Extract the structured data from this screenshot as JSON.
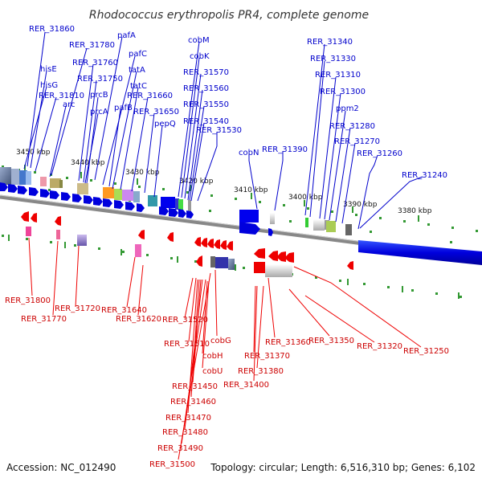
{
  "title": "Rhodococcus erythropolis PR4, complete genome",
  "footer": {
    "accession": "Accession: NC_012490",
    "summary": "Topology: circular; Length: 6,516,310 bp; Genes: 6,102"
  },
  "colors": {
    "forward": "#0000cc",
    "reverse": "#ee0000",
    "backbone": "#888888",
    "tick": "#339933"
  },
  "kbp_ticks": [
    "3450 kbp",
    "3440 kbp",
    "3430 kbp",
    "3420 kbp",
    "3410 kbp",
    "3400 kbp",
    "3390 kbp",
    "3380 kbp"
  ],
  "top_labels": [
    "RER_31860",
    "RER_31780",
    "pafA",
    "cobM",
    "RER_31340",
    "pafC",
    "cobK",
    "RER_31330",
    "hisE",
    "RER_31760",
    "tatA",
    "RER_31570",
    "RER_31310",
    "hisG",
    "RER_31750",
    "tatC",
    "RER_31560",
    "RER_31810",
    "prcB",
    "RER_31660",
    "RER_31300",
    "arc",
    "RER_31550",
    "ppm2",
    "pafB",
    "prcA",
    "RER_31650",
    "pepQ",
    "RER_31540",
    "RER_31280",
    "RER_31530",
    "RER_31270",
    "cobN",
    "RER_31390",
    "RER_31260",
    "RER_31240"
  ],
  "bottom_labels": [
    "RER_31800",
    "RER_31720",
    "RER_31640",
    "RER_31770",
    "RER_31620",
    "RER_31520",
    "RER_31510",
    "cobG",
    "RER_31360",
    "RER_31350",
    "RER_31320",
    "RER_31250",
    "cobH",
    "RER_31370",
    "cobU",
    "RER_31380",
    "RER_31400",
    "RER_31450",
    "RER_31460",
    "RER_31470",
    "RER_31480",
    "RER_31490",
    "RER_31500"
  ]
}
